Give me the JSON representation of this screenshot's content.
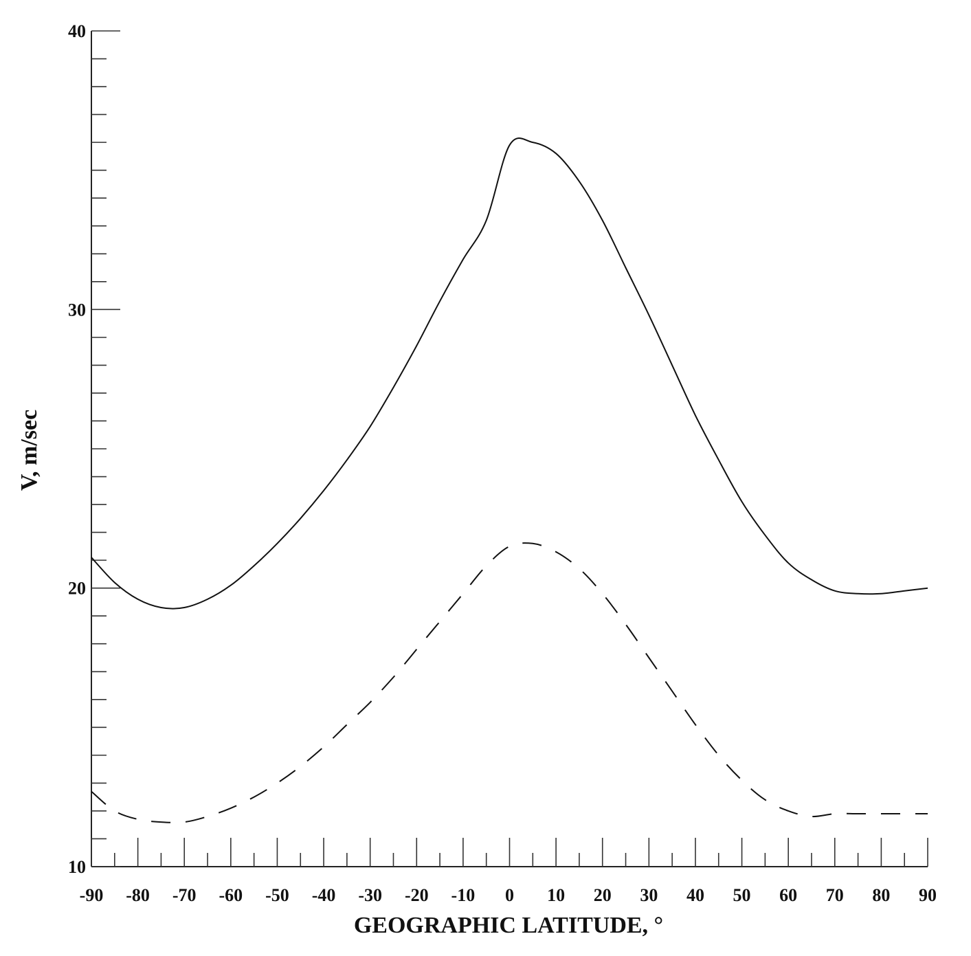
{
  "chart_data": {
    "type": "line",
    "title": "",
    "xlabel": "GEOGRAPHIC LATITUDE, °",
    "ylabel": "V, m/sec",
    "xlim": [
      -90,
      90
    ],
    "ylim": [
      10,
      40
    ],
    "x_ticks": [
      -90,
      -80,
      -70,
      -60,
      -50,
      -40,
      -30,
      -20,
      -10,
      0,
      10,
      20,
      30,
      40,
      50,
      60,
      70,
      80,
      90
    ],
    "x_tick_labels": [
      "-90",
      "-80",
      "-70",
      "-60",
      "-50",
      "-40",
      "-30",
      "-20",
      "-10",
      "0",
      "10",
      "20",
      "30",
      "40",
      "50",
      "60",
      "70",
      "80",
      "90"
    ],
    "y_ticks": [
      10,
      20,
      30,
      40
    ],
    "y_tick_labels": [
      "10",
      "20",
      "30",
      "40"
    ],
    "y_minor_step": 1,
    "x_minor_step": 5,
    "grid": false,
    "legend": "none",
    "x": [
      -90,
      -85,
      -80,
      -75,
      -70,
      -65,
      -60,
      -55,
      -50,
      -45,
      -40,
      -35,
      -30,
      -25,
      -20,
      -15,
      -10,
      -5,
      0,
      5,
      10,
      15,
      20,
      25,
      30,
      35,
      40,
      45,
      50,
      55,
      60,
      65,
      70,
      75,
      80,
      85,
      90
    ],
    "series": [
      {
        "style": "solid",
        "color": "#111111",
        "values": [
          21.1,
          20.2,
          19.6,
          19.3,
          19.3,
          19.6,
          20.1,
          20.8,
          21.6,
          22.5,
          23.5,
          24.6,
          25.8,
          27.2,
          28.7,
          30.3,
          31.8,
          33.2,
          35.9,
          36.0,
          35.6,
          34.6,
          33.2,
          31.5,
          29.8,
          28.0,
          26.2,
          24.6,
          23.1,
          21.9,
          20.9,
          20.3,
          19.9,
          19.8,
          19.8,
          19.9,
          20.0
        ]
      },
      {
        "style": "dashed",
        "color": "#111111",
        "values": [
          12.7,
          12.0,
          11.7,
          11.6,
          11.6,
          11.8,
          12.1,
          12.5,
          13.0,
          13.6,
          14.3,
          15.1,
          15.9,
          16.8,
          17.8,
          18.8,
          19.8,
          20.8,
          21.5,
          21.6,
          21.3,
          20.7,
          19.8,
          18.7,
          17.5,
          16.3,
          15.1,
          14.0,
          13.1,
          12.4,
          12.0,
          11.8,
          11.9,
          11.9,
          11.9,
          11.9,
          11.9
        ]
      }
    ]
  }
}
